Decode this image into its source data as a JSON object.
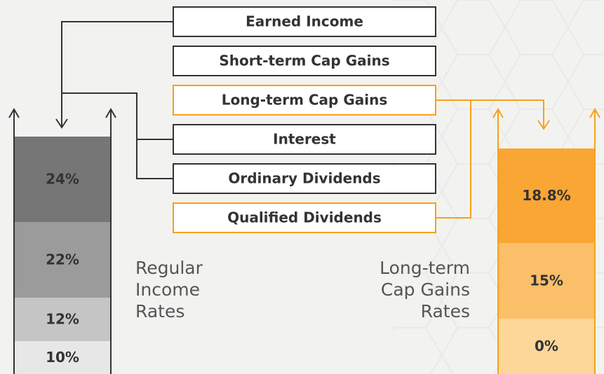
{
  "sources": [
    "Earned Income",
    "Short-term Cap Gains",
    "Long-term Cap Gains",
    "Interest",
    "Ordinary Dividends",
    "Qualified Dividends"
  ],
  "regular": {
    "label": [
      "Regular",
      "Income",
      "Rates"
    ],
    "brackets": [
      "24%",
      "22%",
      "12%",
      "10%"
    ]
  },
  "capgains": {
    "label": [
      "Long-term",
      "Cap Gains",
      "Rates"
    ],
    "brackets": [
      "18.8%",
      "15%",
      "0%"
    ]
  }
}
